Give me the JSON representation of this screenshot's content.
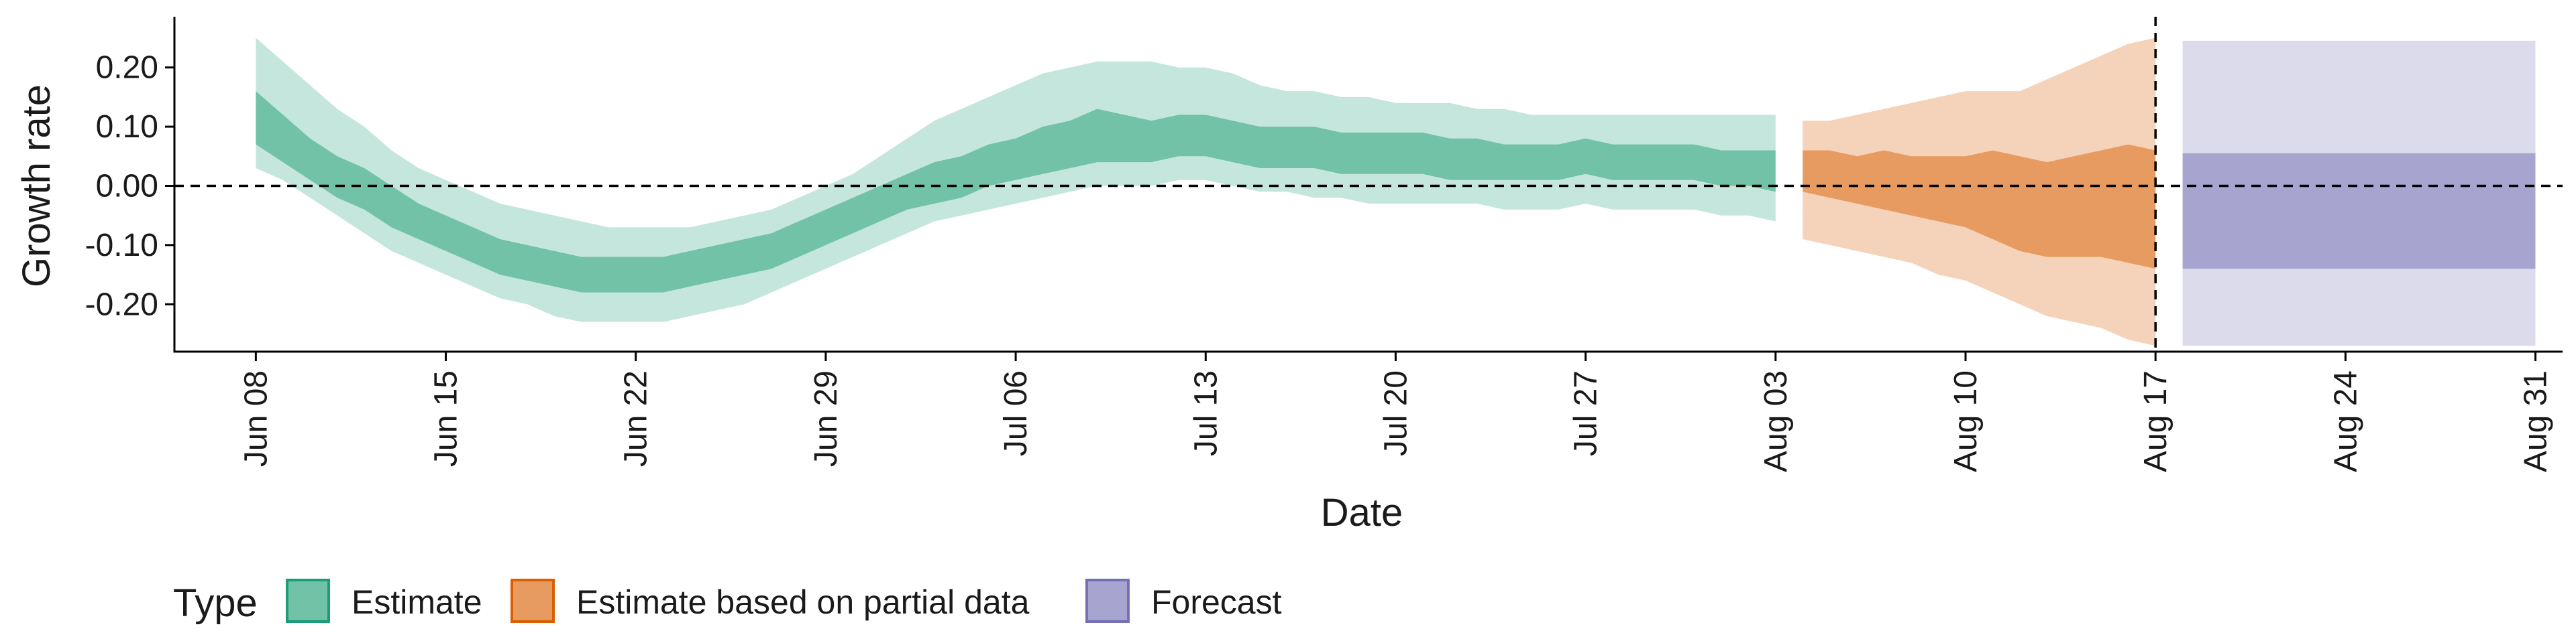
{
  "chart_data": {
    "type": "area",
    "xlabel": "Date",
    "ylabel": "Growth rate",
    "ylim": [
      -0.28,
      0.28
    ],
    "xlim": [
      "2020-06-05",
      "2020-09-01"
    ],
    "y_ticks": [
      {
        "value": 0.2,
        "label": "0.20"
      },
      {
        "value": 0.1,
        "label": "0.10"
      },
      {
        "value": 0.0,
        "label": "0.00"
      },
      {
        "value": -0.1,
        "label": "-0.10"
      },
      {
        "value": -0.2,
        "label": "-0.20"
      }
    ],
    "x_ticks": [
      {
        "date": "2020-06-08",
        "label": "Jun 08"
      },
      {
        "date": "2020-06-15",
        "label": "Jun 15"
      },
      {
        "date": "2020-06-22",
        "label": "Jun 22"
      },
      {
        "date": "2020-06-29",
        "label": "Jun 29"
      },
      {
        "date": "2020-07-06",
        "label": "Jul 06"
      },
      {
        "date": "2020-07-13",
        "label": "Jul 13"
      },
      {
        "date": "2020-07-20",
        "label": "Jul 20"
      },
      {
        "date": "2020-07-27",
        "label": "Jul 27"
      },
      {
        "date": "2020-08-03",
        "label": "Aug 03"
      },
      {
        "date": "2020-08-10",
        "label": "Aug 10"
      },
      {
        "date": "2020-08-17",
        "label": "Aug 17"
      },
      {
        "date": "2020-08-24",
        "label": "Aug 24"
      },
      {
        "date": "2020-08-31",
        "label": "Aug 31"
      }
    ],
    "reference_lines": {
      "horizontal_y": 0.0,
      "vertical_date": "2020-08-17"
    },
    "legend": {
      "title": "Type",
      "position": "bottom-left",
      "entries": [
        {
          "label": "Estimate",
          "fill": "#72c2a8",
          "stroke": "#1b9e77"
        },
        {
          "label": "Estimate based on partial data",
          "fill": "#e89b60",
          "stroke": "#d95f02"
        },
        {
          "label": "Forecast",
          "fill": "#a8a4d0",
          "stroke": "#7570b3"
        }
      ]
    },
    "series": [
      {
        "name": "Estimate",
        "outer_fill": "#c5e6dc",
        "inner_fill": "#72c2a8",
        "points": [
          {
            "date": "2020-06-08",
            "l90": 0.03,
            "l50": 0.07,
            "u50": 0.16,
            "u90": 0.25
          },
          {
            "date": "2020-06-09",
            "l90": 0.01,
            "l50": 0.04,
            "u50": 0.12,
            "u90": 0.21
          },
          {
            "date": "2020-06-10",
            "l90": -0.02,
            "l50": 0.01,
            "u50": 0.08,
            "u90": 0.17
          },
          {
            "date": "2020-06-11",
            "l90": -0.05,
            "l50": -0.02,
            "u50": 0.05,
            "u90": 0.13
          },
          {
            "date": "2020-06-12",
            "l90": -0.08,
            "l50": -0.04,
            "u50": 0.03,
            "u90": 0.1
          },
          {
            "date": "2020-06-13",
            "l90": -0.11,
            "l50": -0.07,
            "u50": 0.0,
            "u90": 0.06
          },
          {
            "date": "2020-06-14",
            "l90": -0.13,
            "l50": -0.09,
            "u50": -0.03,
            "u90": 0.03
          },
          {
            "date": "2020-06-15",
            "l90": -0.15,
            "l50": -0.11,
            "u50": -0.05,
            "u90": 0.01
          },
          {
            "date": "2020-06-16",
            "l90": -0.17,
            "l50": -0.13,
            "u50": -0.07,
            "u90": -0.01
          },
          {
            "date": "2020-06-17",
            "l90": -0.19,
            "l50": -0.15,
            "u50": -0.09,
            "u90": -0.03
          },
          {
            "date": "2020-06-18",
            "l90": -0.2,
            "l50": -0.16,
            "u50": -0.1,
            "u90": -0.04
          },
          {
            "date": "2020-06-19",
            "l90": -0.22,
            "l50": -0.17,
            "u50": -0.11,
            "u90": -0.05
          },
          {
            "date": "2020-06-20",
            "l90": -0.23,
            "l50": -0.18,
            "u50": -0.12,
            "u90": -0.06
          },
          {
            "date": "2020-06-21",
            "l90": -0.23,
            "l50": -0.18,
            "u50": -0.12,
            "u90": -0.07
          },
          {
            "date": "2020-06-22",
            "l90": -0.23,
            "l50": -0.18,
            "u50": -0.12,
            "u90": -0.07
          },
          {
            "date": "2020-06-23",
            "l90": -0.23,
            "l50": -0.18,
            "u50": -0.12,
            "u90": -0.07
          },
          {
            "date": "2020-06-24",
            "l90": -0.22,
            "l50": -0.17,
            "u50": -0.11,
            "u90": -0.07
          },
          {
            "date": "2020-06-25",
            "l90": -0.21,
            "l50": -0.16,
            "u50": -0.1,
            "u90": -0.06
          },
          {
            "date": "2020-06-26",
            "l90": -0.2,
            "l50": -0.15,
            "u50": -0.09,
            "u90": -0.05
          },
          {
            "date": "2020-06-27",
            "l90": -0.18,
            "l50": -0.14,
            "u50": -0.08,
            "u90": -0.04
          },
          {
            "date": "2020-06-28",
            "l90": -0.16,
            "l50": -0.12,
            "u50": -0.06,
            "u90": -0.02
          },
          {
            "date": "2020-06-29",
            "l90": -0.14,
            "l50": -0.1,
            "u50": -0.04,
            "u90": 0.0
          },
          {
            "date": "2020-06-30",
            "l90": -0.12,
            "l50": -0.08,
            "u50": -0.02,
            "u90": 0.02
          },
          {
            "date": "2020-07-01",
            "l90": -0.1,
            "l50": -0.06,
            "u50": 0.0,
            "u90": 0.05
          },
          {
            "date": "2020-07-02",
            "l90": -0.08,
            "l50": -0.04,
            "u50": 0.02,
            "u90": 0.08
          },
          {
            "date": "2020-07-03",
            "l90": -0.06,
            "l50": -0.03,
            "u50": 0.04,
            "u90": 0.11
          },
          {
            "date": "2020-07-04",
            "l90": -0.05,
            "l50": -0.02,
            "u50": 0.05,
            "u90": 0.13
          },
          {
            "date": "2020-07-05",
            "l90": -0.04,
            "l50": 0.0,
            "u50": 0.07,
            "u90": 0.15
          },
          {
            "date": "2020-07-06",
            "l90": -0.03,
            "l50": 0.01,
            "u50": 0.08,
            "u90": 0.17
          },
          {
            "date": "2020-07-07",
            "l90": -0.02,
            "l50": 0.02,
            "u50": 0.1,
            "u90": 0.19
          },
          {
            "date": "2020-07-08",
            "l90": -0.01,
            "l50": 0.03,
            "u50": 0.11,
            "u90": 0.2
          },
          {
            "date": "2020-07-09",
            "l90": 0.0,
            "l50": 0.04,
            "u50": 0.13,
            "u90": 0.21
          },
          {
            "date": "2020-07-10",
            "l90": 0.0,
            "l50": 0.04,
            "u50": 0.12,
            "u90": 0.21
          },
          {
            "date": "2020-07-11",
            "l90": 0.0,
            "l50": 0.04,
            "u50": 0.11,
            "u90": 0.21
          },
          {
            "date": "2020-07-12",
            "l90": 0.01,
            "l50": 0.05,
            "u50": 0.12,
            "u90": 0.2
          },
          {
            "date": "2020-07-13",
            "l90": 0.01,
            "l50": 0.05,
            "u50": 0.12,
            "u90": 0.2
          },
          {
            "date": "2020-07-14",
            "l90": 0.0,
            "l50": 0.04,
            "u50": 0.11,
            "u90": 0.19
          },
          {
            "date": "2020-07-15",
            "l90": -0.01,
            "l50": 0.03,
            "u50": 0.1,
            "u90": 0.17
          },
          {
            "date": "2020-07-16",
            "l90": -0.01,
            "l50": 0.03,
            "u50": 0.1,
            "u90": 0.16
          },
          {
            "date": "2020-07-17",
            "l90": -0.02,
            "l50": 0.03,
            "u50": 0.1,
            "u90": 0.16
          },
          {
            "date": "2020-07-18",
            "l90": -0.02,
            "l50": 0.02,
            "u50": 0.09,
            "u90": 0.15
          },
          {
            "date": "2020-07-19",
            "l90": -0.03,
            "l50": 0.02,
            "u50": 0.09,
            "u90": 0.15
          },
          {
            "date": "2020-07-20",
            "l90": -0.03,
            "l50": 0.02,
            "u50": 0.09,
            "u90": 0.14
          },
          {
            "date": "2020-07-21",
            "l90": -0.03,
            "l50": 0.02,
            "u50": 0.09,
            "u90": 0.14
          },
          {
            "date": "2020-07-22",
            "l90": -0.03,
            "l50": 0.01,
            "u50": 0.08,
            "u90": 0.14
          },
          {
            "date": "2020-07-23",
            "l90": -0.03,
            "l50": 0.01,
            "u50": 0.08,
            "u90": 0.13
          },
          {
            "date": "2020-07-24",
            "l90": -0.04,
            "l50": 0.01,
            "u50": 0.07,
            "u90": 0.13
          },
          {
            "date": "2020-07-25",
            "l90": -0.04,
            "l50": 0.01,
            "u50": 0.07,
            "u90": 0.12
          },
          {
            "date": "2020-07-26",
            "l90": -0.04,
            "l50": 0.01,
            "u50": 0.07,
            "u90": 0.12
          },
          {
            "date": "2020-07-27",
            "l90": -0.03,
            "l50": 0.02,
            "u50": 0.08,
            "u90": 0.12
          },
          {
            "date": "2020-07-28",
            "l90": -0.04,
            "l50": 0.01,
            "u50": 0.07,
            "u90": 0.12
          },
          {
            "date": "2020-07-29",
            "l90": -0.04,
            "l50": 0.01,
            "u50": 0.07,
            "u90": 0.12
          },
          {
            "date": "2020-07-30",
            "l90": -0.04,
            "l50": 0.01,
            "u50": 0.07,
            "u90": 0.12
          },
          {
            "date": "2020-07-31",
            "l90": -0.04,
            "l50": 0.01,
            "u50": 0.07,
            "u90": 0.12
          },
          {
            "date": "2020-08-01",
            "l90": -0.05,
            "l50": 0.0,
            "u50": 0.06,
            "u90": 0.12
          },
          {
            "date": "2020-08-02",
            "l90": -0.05,
            "l50": 0.0,
            "u50": 0.06,
            "u90": 0.12
          },
          {
            "date": "2020-08-03",
            "l90": -0.06,
            "l50": -0.01,
            "u50": 0.06,
            "u90": 0.12
          }
        ]
      },
      {
        "name": "Estimate based on partial data",
        "outer_fill": "#f5d3ba",
        "inner_fill": "#e89b60",
        "points": [
          {
            "date": "2020-08-04",
            "l90": -0.09,
            "l50": -0.01,
            "u50": 0.06,
            "u90": 0.11
          },
          {
            "date": "2020-08-05",
            "l90": -0.1,
            "l50": -0.02,
            "u50": 0.06,
            "u90": 0.11
          },
          {
            "date": "2020-08-06",
            "l90": -0.11,
            "l50": -0.03,
            "u50": 0.05,
            "u90": 0.12
          },
          {
            "date": "2020-08-07",
            "l90": -0.12,
            "l50": -0.04,
            "u50": 0.06,
            "u90": 0.13
          },
          {
            "date": "2020-08-08",
            "l90": -0.13,
            "l50": -0.05,
            "u50": 0.05,
            "u90": 0.14
          },
          {
            "date": "2020-08-09",
            "l90": -0.15,
            "l50": -0.06,
            "u50": 0.05,
            "u90": 0.15
          },
          {
            "date": "2020-08-10",
            "l90": -0.16,
            "l50": -0.07,
            "u50": 0.05,
            "u90": 0.16
          },
          {
            "date": "2020-08-11",
            "l90": -0.18,
            "l50": -0.09,
            "u50": 0.06,
            "u90": 0.16
          },
          {
            "date": "2020-08-12",
            "l90": -0.2,
            "l50": -0.11,
            "u50": 0.05,
            "u90": 0.16
          },
          {
            "date": "2020-08-13",
            "l90": -0.22,
            "l50": -0.12,
            "u50": 0.04,
            "u90": 0.18
          },
          {
            "date": "2020-08-14",
            "l90": -0.23,
            "l50": -0.12,
            "u50": 0.05,
            "u90": 0.2
          },
          {
            "date": "2020-08-15",
            "l90": -0.24,
            "l50": -0.12,
            "u50": 0.06,
            "u90": 0.22
          },
          {
            "date": "2020-08-16",
            "l90": -0.26,
            "l50": -0.13,
            "u50": 0.07,
            "u90": 0.24
          },
          {
            "date": "2020-08-17",
            "l90": -0.27,
            "l50": -0.14,
            "u50": 0.06,
            "u90": 0.25
          }
        ]
      },
      {
        "name": "Forecast",
        "outer_fill": "#dcdbeb",
        "inner_fill": "#a8a4d0",
        "points": [
          {
            "date": "2020-08-18",
            "l90": -0.27,
            "l50": -0.14,
            "u50": 0.055,
            "u90": 0.245
          },
          {
            "date": "2020-08-31",
            "l90": -0.27,
            "l50": -0.14,
            "u50": 0.055,
            "u90": 0.245
          }
        ]
      }
    ]
  }
}
